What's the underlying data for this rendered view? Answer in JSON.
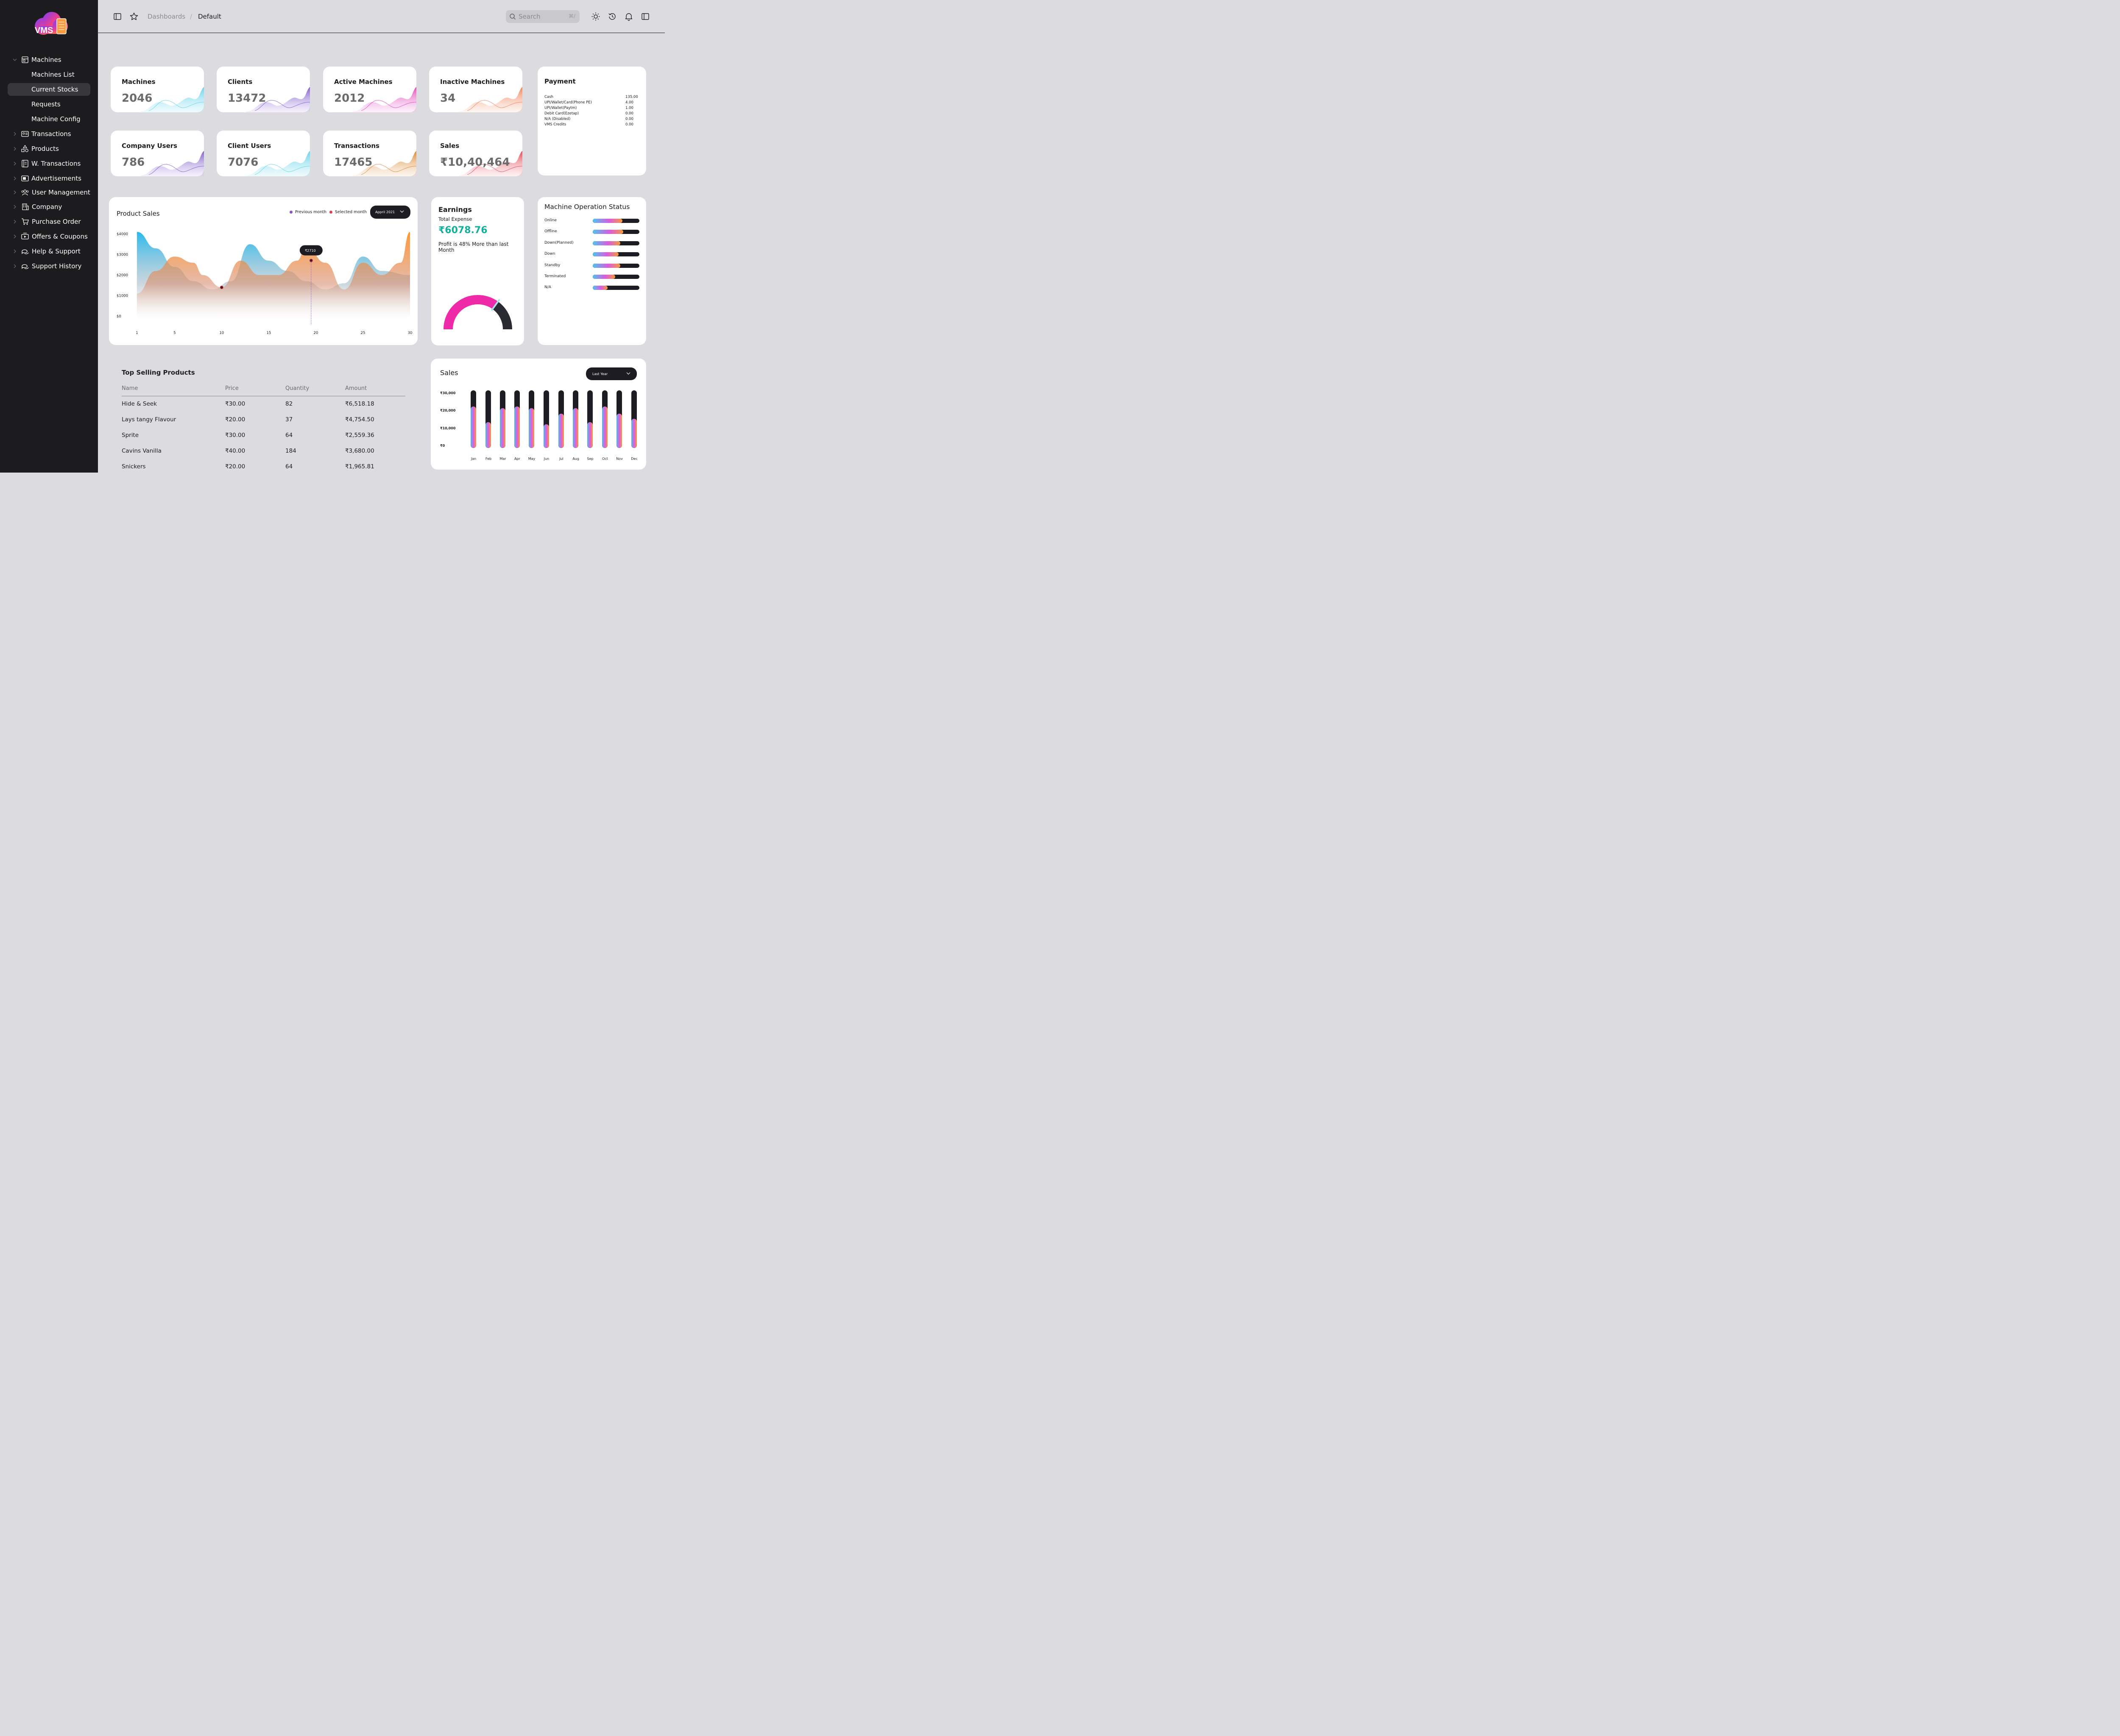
{
  "sidebar": {
    "logo_text": "VMS",
    "items": [
      {
        "label": "Machines",
        "icon": "machine-icon",
        "expanded": true
      },
      {
        "label": "Machines List"
      },
      {
        "label": "Current Stocks",
        "active": true
      },
      {
        "label": "Requests"
      },
      {
        "label": "Machine Config"
      },
      {
        "label": "Transactions",
        "icon": "id-card-icon"
      },
      {
        "label": "Products",
        "icon": "shapes-icon"
      },
      {
        "label": "W. Transactions",
        "icon": "ledger-icon"
      },
      {
        "label": "Advertisements",
        "icon": "screen-icon"
      },
      {
        "label": "User Management",
        "icon": "users-icon"
      },
      {
        "label": "Company",
        "icon": "building-icon"
      },
      {
        "label": "Purchase Order",
        "icon": "cart-icon"
      },
      {
        "label": "Offers & Coupons",
        "icon": "ticket-icon"
      },
      {
        "label": "Help & Support",
        "icon": "chat-icon"
      },
      {
        "label": "Support History",
        "icon": "chat-icon"
      }
    ]
  },
  "header": {
    "breadcrumb": [
      "Dashboards",
      "Default"
    ],
    "search_placeholder": "Search",
    "search_shortcut": "⌘/"
  },
  "stats": [
    {
      "title": "Machines",
      "value": "2046",
      "color_a": "#5fd0ea",
      "color_b": "#bfeef7"
    },
    {
      "title": "Clients",
      "value": "13472",
      "color_a": "#7a55c6",
      "color_b": "#d6c6f2"
    },
    {
      "title": "Active Machines",
      "value": "2012",
      "color_a": "#e040b8",
      "color_b": "#f7c7ec"
    },
    {
      "title": "Inactive Machines",
      "value": "34",
      "color_a": "#f07a50",
      "color_b": "#fbd9c8"
    },
    {
      "title": "Company Users",
      "value": "786",
      "color_a": "#7a55c6",
      "color_b": "#d6c6f2"
    },
    {
      "title": "Client Users",
      "value": "7076",
      "color_a": "#5fd0ea",
      "color_b": "#bfeef7"
    },
    {
      "title": "Transactions",
      "value": "17465",
      "color_a": "#d9822e",
      "color_b": "#f6dbbd"
    },
    {
      "title": "Sales",
      "value": "₹10,40,464",
      "color_a": "#e0404e",
      "color_b": "#f7c9cc"
    }
  ],
  "payment": {
    "title": "Payment",
    "rows": [
      {
        "label": "Cash",
        "value": "135.00"
      },
      {
        "label": " UPI/Wallet/Card(Phone PE)",
        "value": "4.00"
      },
      {
        "label": "UPI/Wallet(Paytm)",
        "value": "1.00"
      },
      {
        "label": "Debit Card(Ezetap)",
        "value": "0.00"
      },
      {
        "label": "N/A (Disabled)",
        "value": "0.00"
      },
      {
        "label": "VMS Credits",
        "value": "0.00"
      }
    ]
  },
  "product_sales": {
    "title": "Product Sales",
    "legend_prev": "Previous month",
    "legend_sel": "Selected month",
    "dropdown": "Appril 2021",
    "tooltip": "₹2710",
    "colors": {
      "prev": "#8b4fc7",
      "sel": "#e0404e"
    }
  },
  "earnings": {
    "title": "Earnings",
    "subtitle": "Total Expense",
    "value": "₹6078.76",
    "note": "Profit is 48% More than last Month",
    "gauge_fraction": 0.7
  },
  "machine_status": {
    "title": "Machine Operation Status",
    "rows": [
      {
        "label": "Online",
        "fraction": 0.64
      },
      {
        "label": "Offline",
        "fraction": 0.65
      },
      {
        "label": "Down(Planned)",
        "fraction": 0.59
      },
      {
        "label": "Down",
        "fraction": 0.55
      },
      {
        "label": "Standby",
        "fraction": 0.59
      },
      {
        "label": "Terminated",
        "fraction": 0.48
      },
      {
        "label": "N/A",
        "fraction": 0.32
      }
    ]
  },
  "top_selling": {
    "title": "Top Selling Products",
    "columns": [
      "Name",
      "Price",
      "Quantity",
      "Amount"
    ],
    "rows": [
      {
        "name": "Hide & Seek",
        "price": "₹30.00",
        "qty": "82",
        "amount": "₹6,518.18"
      },
      {
        "name": "Lays tangy Flavour",
        "price": "₹20.00",
        "qty": "37",
        "amount": "₹4,754.50"
      },
      {
        "name": "Sprite",
        "price": "₹30.00",
        "qty": "64",
        "amount": "₹2,559.36"
      },
      {
        "name": "Cavins Vanilla",
        "price": "₹40.00",
        "qty": "184",
        "amount": "₹3,680.00"
      },
      {
        "name": "Snickers",
        "price": "₹20.00",
        "qty": "64",
        "amount": "₹1,965.81"
      }
    ]
  },
  "sales_panel": {
    "title": "Sales",
    "dropdown": "Last Year"
  },
  "chart_data": [
    {
      "type": "area",
      "title": "Product Sales",
      "x_ticks": [
        1,
        5,
        10,
        15,
        20,
        25,
        30
      ],
      "y_ticks": [
        "$4000",
        "$3000",
        "$2000",
        "$1000",
        "$0"
      ],
      "ylim": [
        0,
        4000
      ],
      "xlim": [
        1,
        30
      ],
      "series": [
        {
          "name": "Previous month",
          "x": [
            1,
            3,
            5,
            7,
            9,
            11,
            13,
            15,
            17,
            19,
            21,
            23,
            25,
            27,
            30
          ],
          "values": [
            4100,
            3300,
            2400,
            1700,
            1300,
            1700,
            3500,
            2700,
            2200,
            1700,
            1300,
            1600,
            2900,
            2200,
            2000
          ]
        },
        {
          "name": "Selected month",
          "x": [
            1,
            3,
            5,
            7,
            8,
            10,
            12,
            14,
            16,
            18,
            19,
            21,
            23,
            25,
            27,
            29,
            30
          ],
          "values": [
            1100,
            2200,
            2900,
            2600,
            2000,
            1400,
            2700,
            2000,
            2000,
            2700,
            3400,
            2600,
            1300,
            2600,
            2000,
            2600,
            4100
          ]
        }
      ],
      "highlight": {
        "x": 19.5,
        "value": 2710,
        "label": "₹2710"
      },
      "markers": [
        {
          "x": 10
        },
        {
          "x": 19.5
        }
      ]
    },
    {
      "type": "bar",
      "title": "Sales",
      "categories": [
        "Jan",
        "Feb",
        "Mar",
        "Apr",
        "May",
        "Jun",
        "Jul",
        "Aug",
        "Sep",
        "Oct",
        "Nov",
        "Dec"
      ],
      "values": [
        21000,
        12000,
        20000,
        21000,
        20000,
        11000,
        17000,
        20000,
        12000,
        21000,
        17000,
        14000
      ],
      "y_ticks": [
        "₹30,000",
        "₹20,000",
        "₹10,000",
        "₹0"
      ],
      "ylim": [
        0,
        30000
      ]
    }
  ]
}
